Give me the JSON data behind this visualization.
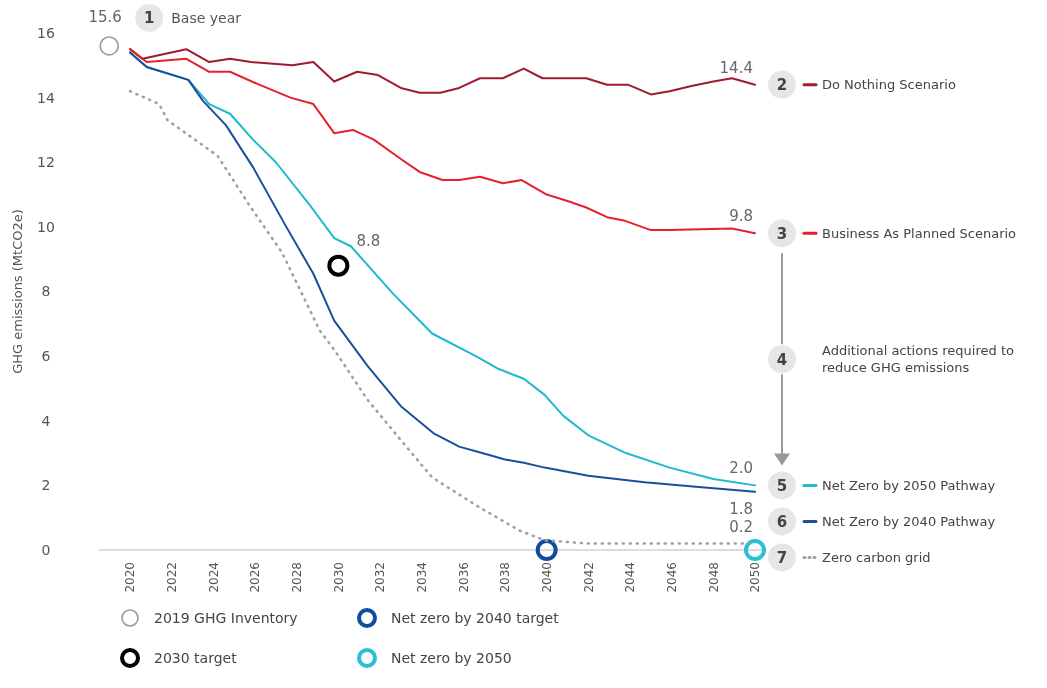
{
  "chart_data": {
    "type": "line",
    "ylabel": "GHG emissions (MtCO2e)",
    "xlim": [
      2018.5,
      2050.5
    ],
    "xticks": [
      2020,
      2022,
      2024,
      2026,
      2028,
      2030,
      2032,
      2034,
      2036,
      2038,
      2040,
      2042,
      2044,
      2046,
      2048,
      2050
    ],
    "ylim": [
      0,
      16
    ],
    "yticks": [
      0,
      2,
      4,
      6,
      8,
      10,
      12,
      14,
      16
    ],
    "grid": false,
    "legend": "bottom",
    "marker": "none",
    "annotations": [
      "1",
      "Base year",
      "2",
      "3",
      "4",
      "Additional actions required to reduce GHG emissions",
      "5",
      "6",
      "7"
    ],
    "series": [
      {
        "name": "Do Nothing Scenario",
        "color": "#9e1b32",
        "x": [
          2020,
          2020.6,
          2022.7,
          2023.8,
          2024.8,
          2025.8,
          2027.8,
          2028.8,
          2029.8,
          2030.9,
          2031.9,
          2033,
          2033.9,
          2034.9,
          2035.8,
          2036.8,
          2037.9,
          2038.9,
          2039.8,
          2041,
          2041.9,
          2042.9,
          2043.9,
          2045,
          2045.9,
          2046.9,
          2048,
          2048.9,
          2050
        ],
        "values": [
          15.5,
          15.2,
          15.5,
          15.1,
          15.2,
          15.1,
          15.0,
          15.1,
          14.5,
          14.8,
          14.7,
          14.3,
          14.15,
          14.15,
          14.3,
          14.6,
          14.6,
          14.9,
          14.6,
          14.6,
          14.6,
          14.4,
          14.4,
          14.1,
          14.2,
          14.35,
          14.5,
          14.6,
          14.4
        ],
        "value_labels": [
          null,
          null,
          null,
          null,
          null,
          null,
          null,
          null,
          null,
          null,
          null,
          null,
          null,
          null,
          null,
          null,
          null,
          null,
          null,
          null,
          null,
          null,
          null,
          null,
          null,
          null,
          null,
          null,
          "14.4"
        ]
      },
      {
        "name": "Business As Planned Scenario",
        "color": "#e4222e",
        "x": [
          2020,
          2020.8,
          2022.7,
          2023.8,
          2024.8,
          2026.2,
          2027.7,
          2028.8,
          2029.8,
          2030.7,
          2031.7,
          2033,
          2033.9,
          2035,
          2035.8,
          2036.8,
          2037.9,
          2038.8,
          2040,
          2041,
          2041.9,
          2042.9,
          2043.7,
          2045,
          2045.9,
          2048.9,
          2050
        ],
        "values": [
          15.5,
          15.1,
          15.2,
          14.8,
          14.8,
          14.4,
          14.0,
          13.8,
          12.9,
          13.0,
          12.7,
          12.1,
          11.7,
          11.45,
          11.45,
          11.55,
          11.35,
          11.45,
          11.0,
          10.8,
          10.6,
          10.3,
          10.2,
          9.9,
          9.9,
          9.95,
          9.8
        ],
        "value_labels": [
          null,
          null,
          null,
          null,
          null,
          null,
          null,
          null,
          null,
          null,
          null,
          null,
          null,
          null,
          null,
          null,
          null,
          null,
          null,
          null,
          null,
          null,
          null,
          null,
          null,
          null,
          "9.8"
        ]
      },
      {
        "name": "Net Zero by 2050 Pathway",
        "color": "#1fb8d1",
        "x": [
          2020,
          2020.8,
          2022.8,
          2023.8,
          2024.8,
          2025.9,
          2027,
          2028.6,
          2029.8,
          2030.6,
          2032.6,
          2034.5,
          2036.6,
          2037.7,
          2038.9,
          2039.9,
          2040.8,
          2042,
          2043.8,
          2045.9,
          2048,
          2050
        ],
        "values": [
          15.4,
          14.95,
          14.55,
          13.8,
          13.5,
          12.7,
          12.0,
          10.7,
          9.65,
          9.4,
          7.95,
          6.7,
          6.0,
          5.6,
          5.3,
          4.8,
          4.15,
          3.55,
          3.0,
          2.55,
          2.2,
          2.0
        ],
        "value_labels": [
          null,
          null,
          null,
          null,
          null,
          null,
          null,
          null,
          null,
          null,
          null,
          null,
          null,
          null,
          null,
          null,
          null,
          null,
          null,
          null,
          null,
          "2.0"
        ]
      },
      {
        "name": "Net Zero by 2040 Pathway",
        "color": "#1b4f9c",
        "x": [
          2020,
          2020.8,
          2022.8,
          2023.5,
          2024.6,
          2025.9,
          2027.5,
          2028.8,
          2029.8,
          2031.4,
          2033,
          2034.6,
          2035.8,
          2036.9,
          2038,
          2038.9,
          2039.9,
          2042,
          2044.7,
          2047.3,
          2050
        ],
        "values": [
          15.4,
          14.95,
          14.55,
          13.9,
          13.15,
          11.85,
          10.0,
          8.55,
          7.1,
          5.7,
          4.45,
          3.6,
          3.2,
          3.0,
          2.8,
          2.7,
          2.55,
          2.3,
          2.1,
          1.95,
          1.8
        ],
        "value_labels": [
          null,
          null,
          null,
          null,
          null,
          null,
          null,
          null,
          null,
          null,
          null,
          null,
          null,
          null,
          null,
          null,
          null,
          null,
          null,
          null,
          "1.8"
        ]
      },
      {
        "name": "Zero carbon grid",
        "color": "#a0a0a0",
        "line_style": "dotted",
        "x": [
          2020,
          2021.4,
          2021.8,
          2024.2,
          2025.8,
          2027.3,
          2029.1,
          2029.8,
          2031.4,
          2033,
          2034.5,
          2036.7,
          2038.7,
          2039.9,
          2042,
          2050
        ],
        "values": [
          14.2,
          13.8,
          13.3,
          12.2,
          10.6,
          9.2,
          6.8,
          6.2,
          4.65,
          3.4,
          2.25,
          1.35,
          0.6,
          0.3,
          0.2,
          0.2
        ],
        "value_labels": [
          null,
          null,
          null,
          null,
          null,
          null,
          null,
          null,
          null,
          null,
          null,
          null,
          null,
          null,
          null,
          "0.2"
        ]
      },
      {
        "name": "2019 GHG Inventory",
        "type": "scatter",
        "marker": "circle",
        "color": "#999999",
        "x": [
          2019
        ],
        "values": [
          15.6
        ],
        "value_labels": [
          "15.6"
        ]
      },
      {
        "name": "2030 target",
        "type": "scatter",
        "marker": "circle",
        "color": "#000000",
        "x": [
          2030
        ],
        "values": [
          8.8
        ],
        "value_labels": [
          "8.8"
        ]
      },
      {
        "name": "Net zero by 2040 target",
        "type": "scatter",
        "marker": "circle",
        "color": "#0d4e9e",
        "x": [
          2040
        ],
        "values": [
          0
        ]
      },
      {
        "name": "Net zero by 2050",
        "type": "scatter",
        "marker": "circle",
        "color": "#28c0d8",
        "x": [
          2050
        ],
        "values": [
          0
        ]
      }
    ]
  }
}
